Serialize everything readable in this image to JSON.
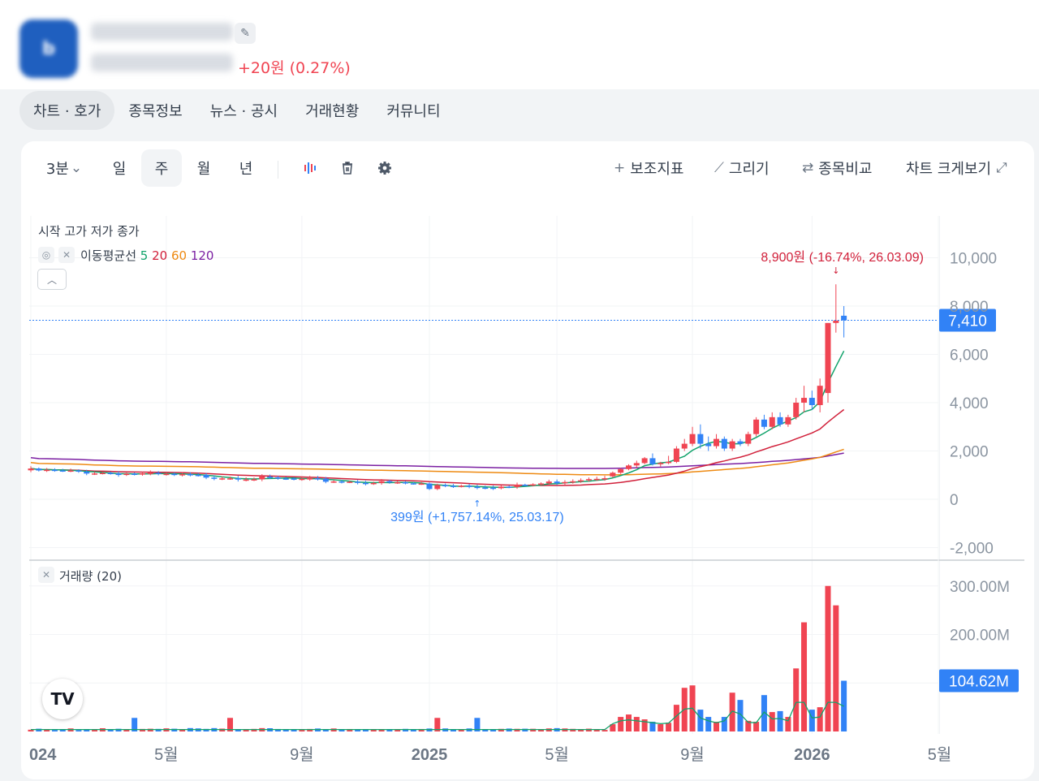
{
  "header": {
    "change": "+20원 (0.27%)",
    "colors": {
      "up": "#f04452",
      "down": "#3182f6"
    }
  },
  "tabs": [
    "차트 · 호가",
    "종목정보",
    "뉴스 · 공시",
    "거래현황",
    "커뮤니티"
  ],
  "toolbar": {
    "interval": "3분",
    "periods": [
      "일",
      "주",
      "월",
      "년"
    ],
    "active_period": "주",
    "indicators": "보조지표",
    "draw": "그리기",
    "compare": "종목비교",
    "expand": "차트 크게보기"
  },
  "legend": {
    "ohlc": "시작  고가  저가  종가",
    "ma_label": "이동평균선",
    "ma_periods": [
      {
        "label": "5",
        "color": "#12a36b"
      },
      {
        "label": "20",
        "color": "#d1203a"
      },
      {
        "label": "60",
        "color": "#ee8a12"
      },
      {
        "label": "120",
        "color": "#7b1fa2"
      }
    ],
    "volume_label": "거래량 (20)"
  },
  "annotations": {
    "high": "8,900원 (-16.74%, 26.03.09)",
    "low": "399원 (+1,757.14%, 25.03.17)"
  },
  "price_axis": {
    "ticks": [
      "10,000",
      "8,000",
      "6,000",
      "4,000",
      "2,000",
      "0",
      "-2,000"
    ],
    "tick_values": [
      10000,
      8000,
      6000,
      4000,
      2000,
      0,
      -2000
    ],
    "current_label": "7,410",
    "current_value": 7410
  },
  "volume_axis": {
    "ticks": [
      "300.00M",
      "200.00M"
    ],
    "tick_values": [
      300,
      200
    ],
    "current_label": "104.62M",
    "current_value": 104.62
  },
  "time_axis": {
    "labels": [
      "024",
      "5월",
      "9월",
      "2025",
      "5월",
      "9월",
      "2026",
      "5월"
    ],
    "bold": [
      true,
      false,
      false,
      true,
      false,
      false,
      true,
      false
    ],
    "positions_weeks": [
      0,
      17,
      34,
      50,
      66,
      83,
      98,
      114
    ]
  },
  "chart_data": {
    "type": "candlestick",
    "x_unit": "week index (weekly candles, 2024-01 to 2026-03)",
    "candles_early": {
      "weeks": [
        0,
        60
      ],
      "close_start": 1200,
      "close_end": 500
    },
    "candles_late": [
      {
        "w": 73,
        "o": 950,
        "h": 1150,
        "l": 900,
        "c": 1100
      },
      {
        "w": 74,
        "o": 1100,
        "h": 1300,
        "l": 1050,
        "c": 1250
      },
      {
        "w": 75,
        "o": 1250,
        "h": 1450,
        "l": 1200,
        "c": 1400
      },
      {
        "w": 76,
        "o": 1400,
        "h": 1600,
        "l": 1300,
        "c": 1500
      },
      {
        "w": 77,
        "o": 1500,
        "h": 1750,
        "l": 1450,
        "c": 1700
      },
      {
        "w": 78,
        "o": 1700,
        "h": 1900,
        "l": 1400,
        "c": 1450
      },
      {
        "w": 79,
        "o": 1450,
        "h": 1550,
        "l": 1350,
        "c": 1500
      },
      {
        "w": 80,
        "o": 1500,
        "h": 1800,
        "l": 1450,
        "c": 1550
      },
      {
        "w": 81,
        "o": 1550,
        "h": 2200,
        "l": 1500,
        "c": 2100
      },
      {
        "w": 82,
        "o": 2100,
        "h": 2500,
        "l": 2000,
        "c": 2300
      },
      {
        "w": 83,
        "o": 2300,
        "h": 3000,
        "l": 2200,
        "c": 2700
      },
      {
        "w": 84,
        "o": 2700,
        "h": 3100,
        "l": 2100,
        "c": 2300
      },
      {
        "w": 85,
        "o": 2300,
        "h": 2600,
        "l": 2000,
        "c": 2200
      },
      {
        "w": 86,
        "o": 2200,
        "h": 2700,
        "l": 2100,
        "c": 2500
      },
      {
        "w": 87,
        "o": 2500,
        "h": 2600,
        "l": 2000,
        "c": 2100
      },
      {
        "w": 88,
        "o": 2100,
        "h": 2500,
        "l": 2000,
        "c": 2400
      },
      {
        "w": 89,
        "o": 2400,
        "h": 2500,
        "l": 2200,
        "c": 2300
      },
      {
        "w": 90,
        "o": 2300,
        "h": 2800,
        "l": 2200,
        "c": 2700
      },
      {
        "w": 91,
        "o": 2700,
        "h": 3400,
        "l": 2600,
        "c": 3300
      },
      {
        "w": 92,
        "o": 3300,
        "h": 3500,
        "l": 2900,
        "c": 3000
      },
      {
        "w": 93,
        "o": 3000,
        "h": 3600,
        "l": 2900,
        "c": 3400
      },
      {
        "w": 94,
        "o": 3400,
        "h": 3600,
        "l": 3000,
        "c": 3100
      },
      {
        "w": 95,
        "o": 3100,
        "h": 3500,
        "l": 3000,
        "c": 3400
      },
      {
        "w": 96,
        "o": 3400,
        "h": 4200,
        "l": 3300,
        "c": 4000
      },
      {
        "w": 97,
        "o": 4000,
        "h": 4700,
        "l": 3600,
        "c": 4200
      },
      {
        "w": 98,
        "o": 4200,
        "h": 4500,
        "l": 3700,
        "c": 3900
      },
      {
        "w": 99,
        "o": 3900,
        "h": 5000,
        "l": 3600,
        "c": 4700
      },
      {
        "w": 100,
        "o": 4400,
        "h": 7300,
        "l": 4000,
        "c": 7300
      },
      {
        "w": 101,
        "o": 7300,
        "h": 8900,
        "l": 6900,
        "c": 7400
      },
      {
        "w": 102,
        "o": 7600,
        "h": 8000,
        "l": 6700,
        "c": 7410
      }
    ],
    "volume_late_M": [
      [
        73,
        15
      ],
      [
        74,
        30
      ],
      [
        75,
        35
      ],
      [
        76,
        30
      ],
      [
        77,
        25
      ],
      [
        78,
        20
      ],
      [
        79,
        15
      ],
      [
        80,
        18
      ],
      [
        81,
        55
      ],
      [
        82,
        90
      ],
      [
        83,
        95
      ],
      [
        84,
        45
      ],
      [
        85,
        30
      ],
      [
        86,
        20
      ],
      [
        87,
        30
      ],
      [
        88,
        80
      ],
      [
        89,
        65
      ],
      [
        90,
        22
      ],
      [
        91,
        20
      ],
      [
        92,
        75
      ],
      [
        93,
        40
      ],
      [
        94,
        42
      ],
      [
        95,
        30
      ],
      [
        96,
        130
      ],
      [
        97,
        225
      ],
      [
        98,
        45
      ],
      [
        99,
        50
      ],
      [
        100,
        300
      ],
      [
        101,
        260
      ],
      [
        102,
        104.62
      ]
    ]
  }
}
